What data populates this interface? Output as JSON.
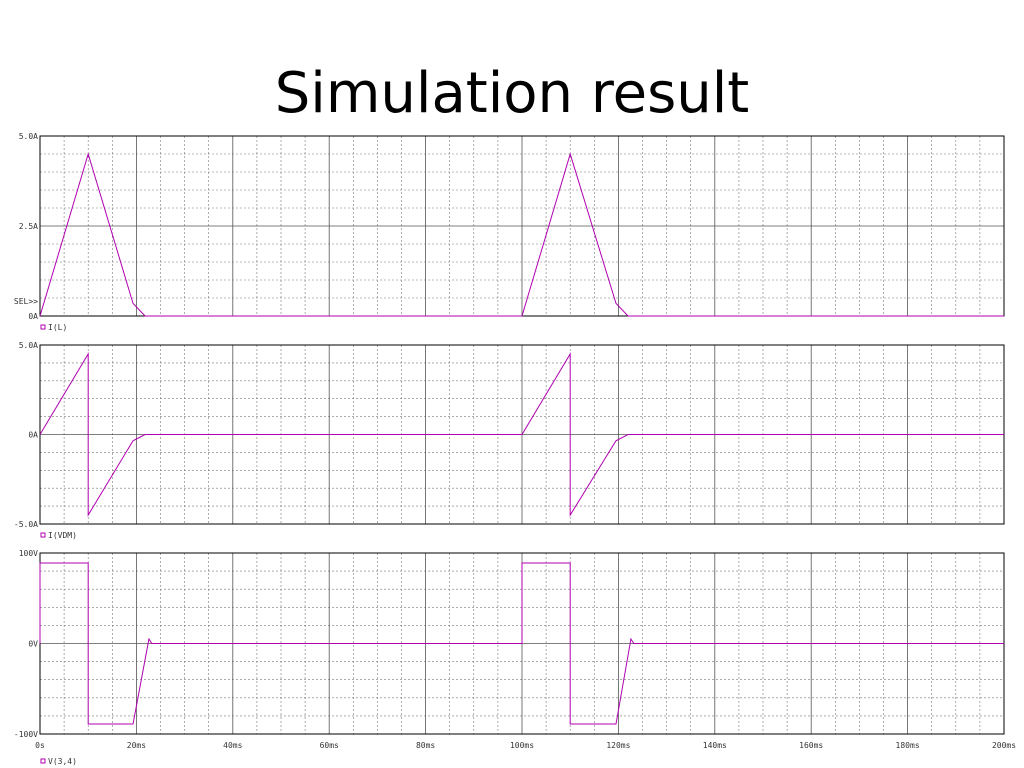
{
  "title": "Simulation result",
  "chart_data": [
    {
      "type": "line",
      "annotation": "SEL>>",
      "x": [
        0,
        10,
        19.3,
        21.8,
        100,
        110,
        119.5,
        122,
        200
      ],
      "xlim": [
        0,
        200
      ],
      "ylim": [
        0,
        5
      ],
      "yticks": [
        {
          "value": 0,
          "label": "0A"
        },
        {
          "value": 2.5,
          "label": "2.5A"
        },
        {
          "value": 5,
          "label": "5.0A"
        }
      ],
      "grid": true,
      "series": [
        {
          "name": "I(L)",
          "color": "#b000b0",
          "values": [
            0,
            4.5,
            0.35,
            0,
            0,
            4.5,
            0.35,
            0,
            0
          ]
        }
      ]
    },
    {
      "type": "line",
      "x": [
        0,
        10,
        10,
        19.3,
        21.8,
        100,
        110,
        110,
        119.5,
        122,
        200
      ],
      "xlim": [
        0,
        200
      ],
      "ylim": [
        -5,
        5
      ],
      "yticks": [
        {
          "value": -5,
          "label": "-5.0A"
        },
        {
          "value": 0,
          "label": "0A"
        },
        {
          "value": 5,
          "label": "5.0A"
        }
      ],
      "grid": true,
      "series": [
        {
          "name": "I(VDM)",
          "color": "#b000b0",
          "values": [
            0,
            4.5,
            -4.5,
            -0.35,
            0,
            0,
            4.5,
            -4.5,
            -0.35,
            0,
            0
          ]
        }
      ]
    },
    {
      "type": "line",
      "x": [
        0,
        0,
        10,
        10,
        19.3,
        22.6,
        23.2,
        100,
        100,
        110,
        110,
        119.5,
        122.6,
        123.2,
        200
      ],
      "xlim": [
        0,
        200
      ],
      "ylim": [
        -100,
        100
      ],
      "yticks": [
        {
          "value": -100,
          "label": "-100V"
        },
        {
          "value": 0,
          "label": "0V"
        },
        {
          "value": 100,
          "label": "100V"
        }
      ],
      "xticks": [
        {
          "value": 0,
          "label": "0s"
        },
        {
          "value": 20,
          "label": "20ms"
        },
        {
          "value": 40,
          "label": "40ms"
        },
        {
          "value": 60,
          "label": "60ms"
        },
        {
          "value": 80,
          "label": "80ms"
        },
        {
          "value": 100,
          "label": "100ms"
        },
        {
          "value": 120,
          "label": "120ms"
        },
        {
          "value": 140,
          "label": "140ms"
        },
        {
          "value": 160,
          "label": "160ms"
        },
        {
          "value": 180,
          "label": "180ms"
        },
        {
          "value": 200,
          "label": "200ms"
        }
      ],
      "grid": true,
      "series": [
        {
          "name": "V(3,4)",
          "color": "#b000b0",
          "values": [
            0,
            89,
            89,
            -89,
            -89,
            5,
            0,
            0,
            89,
            89,
            -89,
            -89,
            5,
            0,
            0
          ]
        }
      ]
    }
  ]
}
